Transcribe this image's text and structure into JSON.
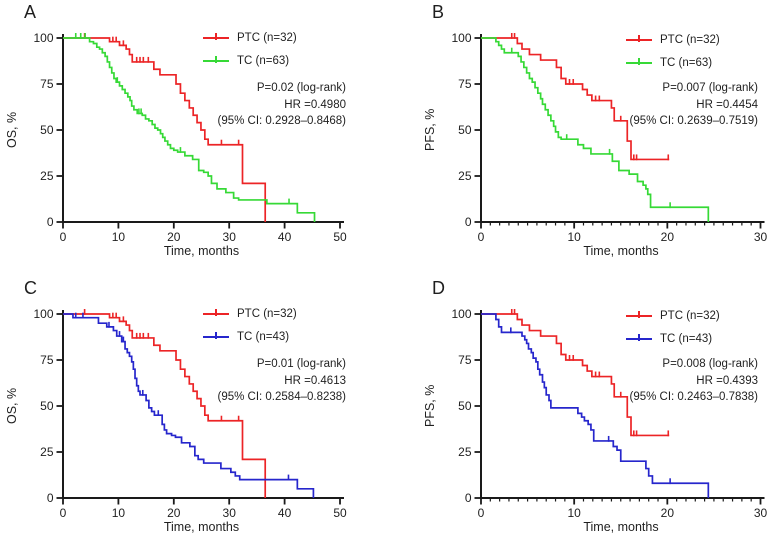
{
  "figure": {
    "background": "#ffffff",
    "colors": {
      "ptc": "#ec2426",
      "tc_green": "#36d936",
      "tc_blue": "#2626cc",
      "axis": "#1a1a1a",
      "text": "#1f1f1f"
    }
  },
  "chart_data": [
    {
      "panel_label": "A",
      "type": "line",
      "subtype": "kaplan-meier-step",
      "xlabel": "Time, months",
      "ylabel": "OS, %",
      "xlim": [
        0,
        50
      ],
      "ylim": [
        0,
        100
      ],
      "xticks": [
        0,
        10,
        20,
        30,
        40,
        50
      ],
      "yticks": [
        0,
        25,
        50,
        75,
        100
      ],
      "x_minor_step": null,
      "grid": false,
      "legend_position": "top-right-inside",
      "stats": [
        "P=0.02 (log-rank)",
        "HR =0.4980",
        "(95% CI: 0.2928–0.8468)"
      ],
      "series": [
        {
          "name": "PTC (n=32)",
          "color_key": "ptc",
          "steps": [
            [
              0,
              100
            ],
            [
              8.4,
              98
            ],
            [
              10.2,
              96
            ],
            [
              11.4,
              94
            ],
            [
              12.0,
              91
            ],
            [
              12.5,
              87
            ],
            [
              16.4,
              83
            ],
            [
              17.5,
              80
            ],
            [
              20.4,
              75
            ],
            [
              21.2,
              70
            ],
            [
              22.0,
              66
            ],
            [
              22.8,
              62
            ],
            [
              23.5,
              58
            ],
            [
              24.2,
              54
            ],
            [
              24.9,
              50
            ],
            [
              25.6,
              45
            ],
            [
              26.2,
              42
            ],
            [
              32.4,
              21
            ],
            [
              36.5,
              0
            ]
          ],
          "censors": [
            3.9,
            9.0,
            9.6,
            10.9,
            13.3,
            13.9,
            14.5,
            15.4,
            28.6,
            31.7
          ],
          "tail": null
        },
        {
          "name": "TC (n=63)",
          "color_key": "tc_green",
          "steps": [
            [
              0,
              100
            ],
            [
              4.8,
              98
            ],
            [
              5.5,
              97
            ],
            [
              6.1,
              95
            ],
            [
              6.6,
              94
            ],
            [
              7.1,
              92
            ],
            [
              7.6,
              90
            ],
            [
              8.0,
              87
            ],
            [
              8.4,
              84
            ],
            [
              8.8,
              81
            ],
            [
              9.2,
              78
            ],
            [
              9.6,
              76
            ],
            [
              10.2,
              74
            ],
            [
              10.7,
              72
            ],
            [
              11.2,
              70
            ],
            [
              11.7,
              68
            ],
            [
              12.1,
              66
            ],
            [
              12.4,
              63
            ],
            [
              12.8,
              61
            ],
            [
              13.4,
              59
            ],
            [
              14.3,
              58
            ],
            [
              14.9,
              56
            ],
            [
              15.5,
              55
            ],
            [
              16.1,
              53
            ],
            [
              16.6,
              51
            ],
            [
              17.1,
              50
            ],
            [
              17.6,
              48
            ],
            [
              18.0,
              46
            ],
            [
              18.4,
              44
            ],
            [
              18.9,
              42
            ],
            [
              19.4,
              40
            ],
            [
              20.0,
              39
            ],
            [
              20.7,
              38
            ],
            [
              22.0,
              36
            ],
            [
              23.4,
              34
            ],
            [
              24.5,
              28
            ],
            [
              25.4,
              27
            ],
            [
              26.2,
              25
            ],
            [
              26.8,
              21
            ],
            [
              27.8,
              18
            ],
            [
              29.4,
              16
            ],
            [
              30.8,
              13
            ],
            [
              31.7,
              12
            ],
            [
              36.8,
              10
            ],
            [
              42.3,
              5
            ],
            [
              45.4,
              0
            ]
          ],
          "censors": [
            2.3,
            3.2,
            4.0,
            9.8,
            13.7,
            14.1,
            21.2,
            40.8
          ],
          "tail": null
        }
      ]
    },
    {
      "panel_label": "B",
      "type": "line",
      "subtype": "kaplan-meier-step",
      "xlabel": "Time, months",
      "ylabel": "PFS, %",
      "xlim": [
        0,
        30
      ],
      "ylim": [
        0,
        100
      ],
      "xticks": [
        0,
        10,
        20,
        30
      ],
      "yticks": [
        0,
        25,
        50,
        75,
        100
      ],
      "x_minor_step": 1,
      "grid": false,
      "legend_position": "top-right-inside",
      "stats": [
        "P=0.007 (log-rank)",
        "HR =0.4454",
        "(95% CI: 0.2639–0.7519)"
      ],
      "series": [
        {
          "name": "PTC (n=32)",
          "color_key": "ptc",
          "steps": [
            [
              0,
              100
            ],
            [
              3.9,
              97
            ],
            [
              4.4,
              94
            ],
            [
              5.2,
              91
            ],
            [
              6.4,
              88
            ],
            [
              8.1,
              84
            ],
            [
              8.6,
              78
            ],
            [
              9.1,
              75
            ],
            [
              10.9,
              72
            ],
            [
              11.4,
              69
            ],
            [
              11.9,
              66
            ],
            [
              14.0,
              62
            ],
            [
              14.3,
              55
            ],
            [
              15.7,
              44
            ],
            [
              16.1,
              34
            ]
          ],
          "censors": [
            3.3,
            3.6,
            9.5,
            9.9,
            12.3,
            12.7,
            15.0,
            16.4,
            16.7,
            20.1
          ],
          "tail": 20.2
        },
        {
          "name": "TC (n=63)",
          "color_key": "tc_green",
          "steps": [
            [
              0,
              100
            ],
            [
              1.6,
              98
            ],
            [
              1.9,
              96
            ],
            [
              2.2,
              94
            ],
            [
              2.5,
              92
            ],
            [
              4.0,
              90
            ],
            [
              4.3,
              87
            ],
            [
              4.6,
              84
            ],
            [
              4.9,
              81
            ],
            [
              5.2,
              78
            ],
            [
              5.5,
              76
            ],
            [
              5.8,
              73
            ],
            [
              6.1,
              70
            ],
            [
              6.4,
              67
            ],
            [
              6.6,
              64
            ],
            [
              6.9,
              61
            ],
            [
              7.2,
              58
            ],
            [
              7.5,
              55
            ],
            [
              7.8,
              52
            ],
            [
              8.0,
              49
            ],
            [
              8.3,
              46
            ],
            [
              8.6,
              45
            ],
            [
              10.4,
              42
            ],
            [
              11.0,
              40
            ],
            [
              11.8,
              37
            ],
            [
              14.1,
              33
            ],
            [
              14.8,
              28
            ],
            [
              15.9,
              26
            ],
            [
              16.8,
              22
            ],
            [
              17.4,
              20
            ],
            [
              17.7,
              18
            ],
            [
              17.9,
              15
            ],
            [
              18.2,
              8
            ],
            [
              24.4,
              0
            ]
          ],
          "censors": [
            3.3,
            9.2,
            13.8,
            20.3
          ],
          "tail": null
        }
      ]
    },
    {
      "panel_label": "C",
      "type": "line",
      "subtype": "kaplan-meier-step",
      "xlabel": "Time, months",
      "ylabel": "OS, %",
      "xlim": [
        0,
        50
      ],
      "ylim": [
        0,
        100
      ],
      "xticks": [
        0,
        10,
        20,
        30,
        40,
        50
      ],
      "yticks": [
        0,
        25,
        50,
        75,
        100
      ],
      "x_minor_step": null,
      "grid": false,
      "legend_position": "top-right-inside",
      "stats": [
        "P=0.01 (log-rank)",
        "HR =0.4613",
        "(95% CI: 0.2584–0.8238)"
      ],
      "series": [
        {
          "name": "PTC (n=32)",
          "color_key": "ptc",
          "steps": [
            [
              0,
              100
            ],
            [
              8.4,
              98
            ],
            [
              10.2,
              96
            ],
            [
              11.4,
              94
            ],
            [
              12.0,
              91
            ],
            [
              12.5,
              87
            ],
            [
              16.4,
              83
            ],
            [
              17.5,
              80
            ],
            [
              20.4,
              75
            ],
            [
              21.2,
              70
            ],
            [
              22.0,
              66
            ],
            [
              22.8,
              62
            ],
            [
              23.5,
              58
            ],
            [
              24.2,
              54
            ],
            [
              24.9,
              50
            ],
            [
              25.6,
              45
            ],
            [
              26.2,
              42
            ],
            [
              32.4,
              21
            ],
            [
              36.5,
              0
            ]
          ],
          "censors": [
            3.9,
            9.0,
            9.6,
            10.9,
            13.3,
            13.9,
            14.5,
            15.4,
            28.6,
            31.7
          ],
          "tail": null
        },
        {
          "name": "TC (n=43)",
          "color_key": "tc_blue",
          "steps": [
            [
              0,
              100
            ],
            [
              1.8,
              98
            ],
            [
              6.4,
              95
            ],
            [
              7.9,
              93
            ],
            [
              9.1,
              91
            ],
            [
              9.7,
              88
            ],
            [
              10.6,
              85
            ],
            [
              11.2,
              81
            ],
            [
              11.6,
              79
            ],
            [
              12.0,
              77
            ],
            [
              12.4,
              74
            ],
            [
              12.7,
              70
            ],
            [
              13.0,
              65
            ],
            [
              13.3,
              61
            ],
            [
              13.6,
              58
            ],
            [
              13.9,
              56
            ],
            [
              15.0,
              53
            ],
            [
              15.5,
              49
            ],
            [
              16.0,
              47
            ],
            [
              16.5,
              45
            ],
            [
              17.9,
              40
            ],
            [
              18.3,
              37
            ],
            [
              18.7,
              35
            ],
            [
              19.6,
              34
            ],
            [
              20.3,
              33
            ],
            [
              21.4,
              30
            ],
            [
              22.9,
              28
            ],
            [
              23.8,
              23
            ],
            [
              24.4,
              21
            ],
            [
              25.4,
              19
            ],
            [
              28.5,
              16
            ],
            [
              30.3,
              14
            ],
            [
              31.1,
              12
            ],
            [
              31.9,
              10
            ],
            [
              42.3,
              5
            ],
            [
              45.2,
              0
            ]
          ],
          "censors": [
            2.3,
            3.6,
            8.3,
            10.2,
            10.9,
            14.4,
            17.2,
            40.7
          ],
          "tail": null
        }
      ]
    },
    {
      "panel_label": "D",
      "type": "line",
      "subtype": "kaplan-meier-step",
      "xlabel": "Time, months",
      "ylabel": "PFS, %",
      "xlim": [
        0,
        30
      ],
      "ylim": [
        0,
        100
      ],
      "xticks": [
        0,
        10,
        20,
        30
      ],
      "yticks": [
        0,
        25,
        50,
        75,
        100
      ],
      "x_minor_step": 1,
      "grid": false,
      "legend_position": "top-right-inside",
      "stats": [
        "P=0.008 (log-rank)",
        "HR =0.4393",
        "(95% CI: 0.2463–0.7838)"
      ],
      "series": [
        {
          "name": "PTC (n=32)",
          "color_key": "ptc",
          "steps": [
            [
              0,
              100
            ],
            [
              3.9,
              97
            ],
            [
              4.4,
              94
            ],
            [
              5.2,
              91
            ],
            [
              6.4,
              88
            ],
            [
              8.1,
              84
            ],
            [
              8.6,
              78
            ],
            [
              9.1,
              75
            ],
            [
              10.9,
              72
            ],
            [
              11.4,
              69
            ],
            [
              11.9,
              66
            ],
            [
              14.0,
              62
            ],
            [
              14.3,
              55
            ],
            [
              15.7,
              44
            ],
            [
              16.1,
              34
            ]
          ],
          "censors": [
            3.3,
            3.6,
            9.5,
            9.9,
            12.3,
            12.7,
            15.0,
            16.4,
            16.7,
            20.1
          ],
          "tail": 20.2
        },
        {
          "name": "TC (n=43)",
          "color_key": "tc_blue",
          "steps": [
            [
              0,
              100
            ],
            [
              1.6,
              97
            ],
            [
              1.9,
              93
            ],
            [
              2.2,
              90
            ],
            [
              4.4,
              88
            ],
            [
              4.7,
              86
            ],
            [
              4.9,
              84
            ],
            [
              5.1,
              81
            ],
            [
              5.4,
              79
            ],
            [
              5.6,
              76
            ],
            [
              5.9,
              74
            ],
            [
              6.1,
              70
            ],
            [
              6.3,
              67
            ],
            [
              6.6,
              63
            ],
            [
              6.8,
              60
            ],
            [
              7.0,
              56
            ],
            [
              7.3,
              53
            ],
            [
              7.5,
              49
            ],
            [
              10.4,
              46
            ],
            [
              10.8,
              44
            ],
            [
              11.1,
              42
            ],
            [
              11.5,
              40
            ],
            [
              11.8,
              37
            ],
            [
              12.1,
              31
            ],
            [
              14.2,
              28
            ],
            [
              14.6,
              26
            ],
            [
              15.0,
              20
            ],
            [
              17.7,
              16
            ],
            [
              18.0,
              12
            ],
            [
              18.4,
              8
            ],
            [
              24.4,
              0
            ]
          ],
          "censors": [
            3.2,
            13.7,
            20.3
          ],
          "tail": null
        }
      ]
    }
  ]
}
